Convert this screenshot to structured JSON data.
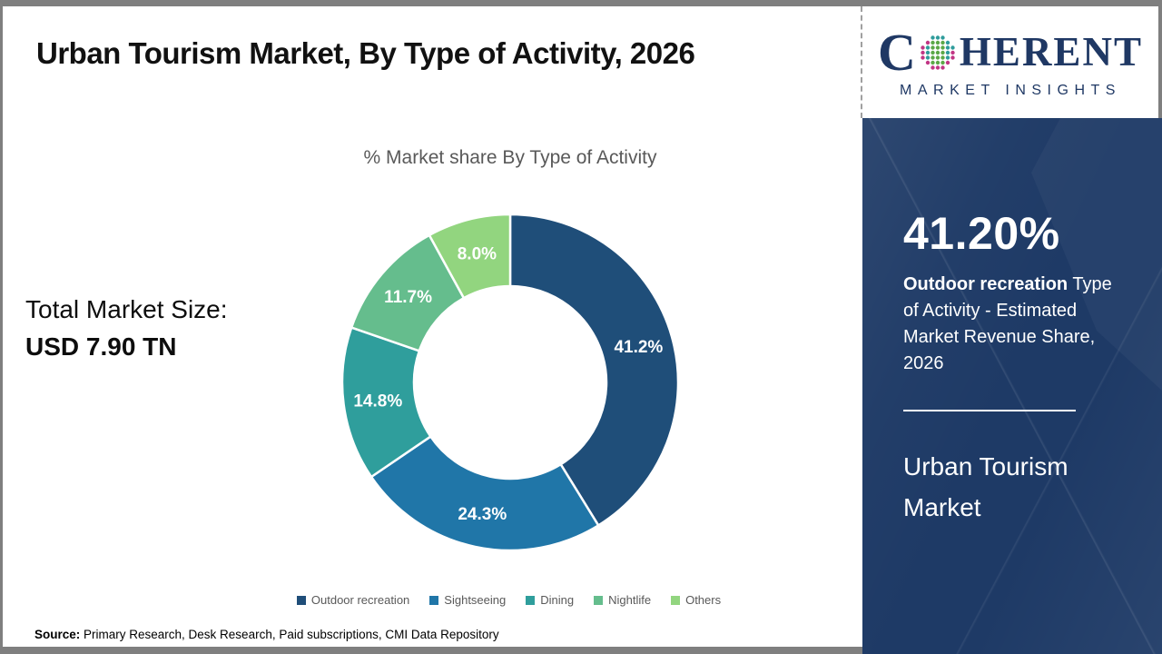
{
  "header": {
    "title": "Urban Tourism Market, By Type of Activity, 2026"
  },
  "logo": {
    "brand_first_letter": "C",
    "brand_rest": "HERENT",
    "tagline": "MARKET INSIGHTS",
    "brand_color": "#1f3864"
  },
  "left_panel": {
    "total_label": "Total Market Size:",
    "total_value": "USD 7.90 TN"
  },
  "chart_data": {
    "type": "pie",
    "donut": true,
    "title": "% Market share By Type of Activity",
    "categories": [
      "Outdoor recreation",
      "Sightseeing",
      "Dining",
      "Nightlife",
      "Others"
    ],
    "values": [
      41.2,
      24.3,
      14.8,
      11.7,
      8.0
    ],
    "value_labels": [
      "41.2%",
      "24.3%",
      "14.8%",
      "11.7%",
      "8.0%"
    ],
    "colors": [
      "#1F4E79",
      "#2076A8",
      "#2F9E9C",
      "#65BD8D",
      "#92D57F"
    ],
    "start_angle_deg": 0,
    "direction": "clockwise",
    "legend_position": "bottom"
  },
  "sidebar": {
    "highlight_value": "41.20%",
    "highlight_bold": "Outdoor recreation",
    "highlight_rest": " Type of Activity - Estimated Market Revenue Share, 2026",
    "market_name": "Urban Tourism Market",
    "background_color": "#1E3A66"
  },
  "footer": {
    "source_label": "Source:",
    "source_text": " Primary Research, Desk Research, Paid subscriptions, CMI Data Repository"
  }
}
